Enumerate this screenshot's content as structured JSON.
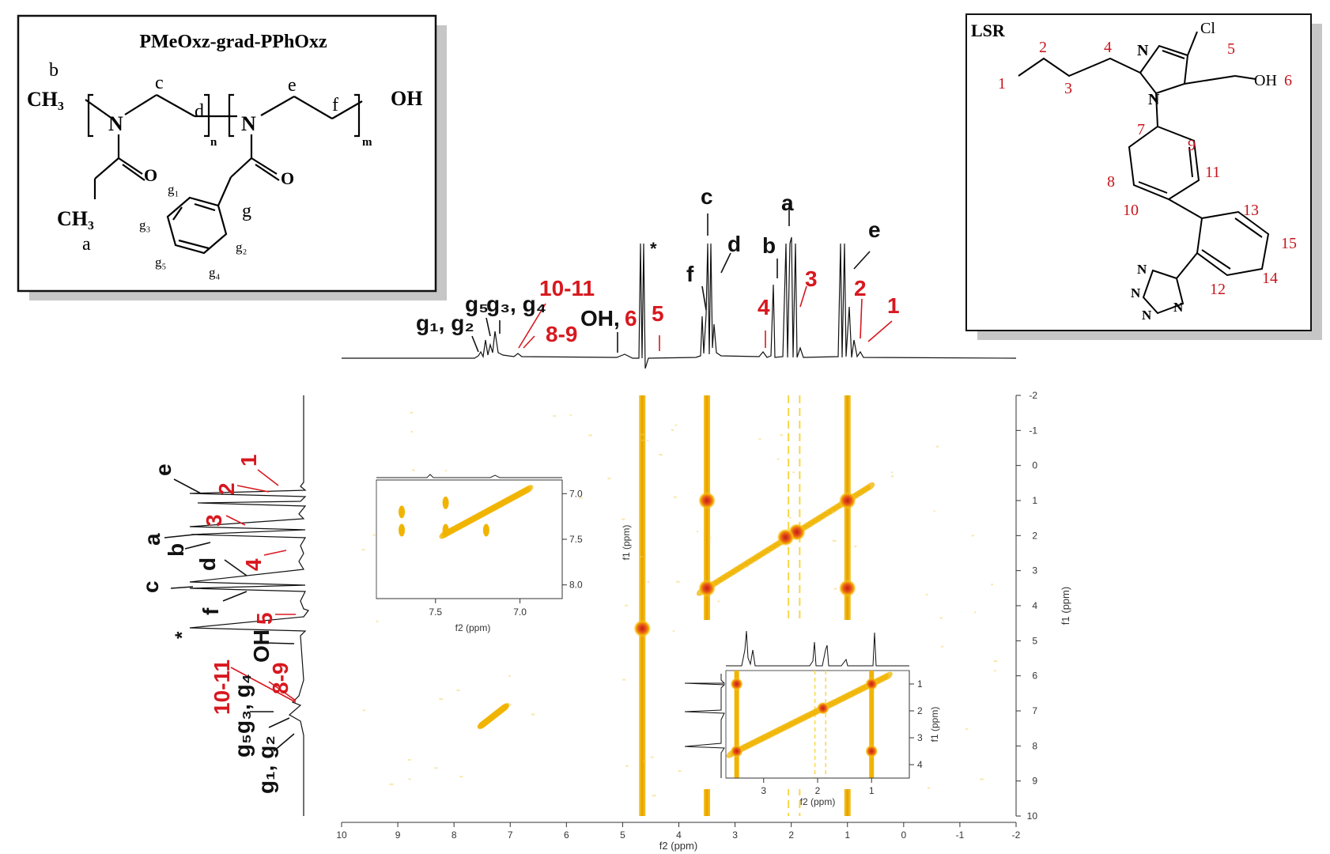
{
  "chart_data": {
    "type": "heatmap",
    "subtype": "2D NOESY NMR contour plot with projected 1D 1H spectra",
    "xlabel": "f2 (ppm)",
    "ylabel": "f1 (ppm)",
    "xlim": [
      10,
      -2
    ],
    "ylim": [
      -2,
      10
    ],
    "x_ticks": [
      "10",
      "9",
      "8",
      "7",
      "6",
      "5",
      "4",
      "3",
      "2",
      "1",
      "0",
      "-1",
      "-2"
    ],
    "y_ticks": [
      "-2",
      "-1",
      "0",
      "1",
      "2",
      "3",
      "4",
      "5",
      "6",
      "7",
      "8",
      "9",
      "10"
    ],
    "colormap": {
      "low": "#f7d74a",
      "mid": "#f0b400",
      "high": "#d23a1a"
    },
    "stripes_f2": [
      4.65,
      3.5,
      1.0
    ],
    "dashed_lines_f2": [
      2.05,
      1.85
    ],
    "diagonal": {
      "from": [
        3.6,
        3.6
      ],
      "to": [
        0.6,
        0.6
      ]
    },
    "cross_peaks": [
      {
        "f2": 3.5,
        "f1": 1.0
      },
      {
        "f2": 1.0,
        "f1": 3.5
      },
      {
        "f2": 4.65,
        "f1": 4.65
      },
      {
        "f2": 3.5,
        "f1": 3.5
      },
      {
        "f2": 1.0,
        "f1": 1.0
      },
      {
        "f2": 1.9,
        "f1": 1.9
      },
      {
        "f2": 2.1,
        "f1": 2.05
      }
    ],
    "aromatic_diagonal": {
      "from": [
        7.5,
        7.4
      ],
      "to": [
        7.1,
        6.9
      ]
    },
    "top_spectrum_labels": {
      "black": [
        "g₁, g₂",
        "g₅",
        "g₃, g₄",
        "OH,",
        "*",
        "f",
        "c",
        "d",
        "b",
        "a",
        "e"
      ],
      "red": [
        "10-11",
        "8-9",
        "6",
        "5",
        "4",
        "3",
        "2",
        "1"
      ]
    },
    "left_spectrum_labels": {
      "black": [
        "e",
        "a",
        "b",
        "d",
        "c",
        "f",
        "*",
        "OH",
        "g₃, g₄",
        "g₅",
        "g₁, g₂"
      ],
      "red": [
        "1",
        "2",
        "3",
        "4",
        "5",
        "10-11",
        "8-9"
      ]
    },
    "inset_aromatic": {
      "xlabel": "f2 (ppm)",
      "x_ticks": [
        "7.5",
        "7.0"
      ],
      "y_ticks": [
        "7.0",
        "7.5",
        "8.0"
      ],
      "xlim": [
        7.85,
        6.75
      ],
      "ylim": [
        6.85,
        8.15
      ]
    },
    "inset_aliphatic": {
      "xlabel": "f2 (ppm)",
      "ylabel": "f1 (ppm)",
      "x_ticks": [
        "3",
        "2",
        "1"
      ],
      "y_ticks": [
        "1",
        "2",
        "3",
        "4"
      ],
      "xlim": [
        3.7,
        0.3
      ],
      "ylim": [
        0.5,
        4.5
      ]
    }
  },
  "structures": {
    "polymer": {
      "title": "PMeOxz-grad-PPhOxz",
      "atoms": {
        "ch3": "CH₃",
        "n": "N",
        "o": "O",
        "oh": "OH",
        "sub_n": "n",
        "sub_m": "m"
      },
      "labels": [
        "a",
        "b",
        "c",
        "d",
        "e",
        "f",
        "g",
        "g₁",
        "g₂",
        "g₃",
        "g₄",
        "g₅"
      ]
    },
    "drug": {
      "title": "LSR",
      "atoms": {
        "cl": "Cl",
        "n": "N",
        "oh": "OH",
        "hn": "N"
      },
      "numbers": [
        "1",
        "2",
        "3",
        "4",
        "5",
        "6",
        "7",
        "8",
        "9",
        "10",
        "11",
        "12",
        "13",
        "14",
        "15"
      ]
    }
  }
}
